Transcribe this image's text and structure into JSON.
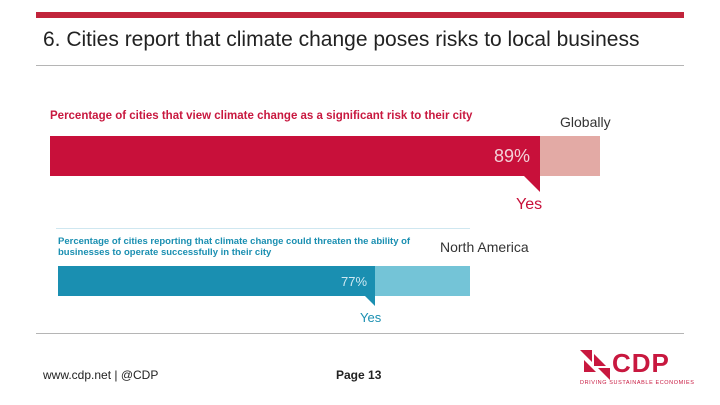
{
  "slide": {
    "title": "6. Cities report that climate change poses risks to local business"
  },
  "footer": {
    "url": "www.cdp.net | @CDP",
    "page": "Page 13"
  },
  "logo": {
    "text": "CDP",
    "tagline": "DRIVING SUSTAINABLE ECONOMIES"
  },
  "colors": {
    "brand_red": "#c1243b",
    "global_bar": "#c8103a",
    "global_bar_bg": "#e3aaa5",
    "na_bar": "#1a8fb1",
    "na_bar_bg": "#74c4d7"
  },
  "chart_data": [
    {
      "type": "bar",
      "title": "Percentage of cities that view climate change as a significant risk to their city",
      "region": "Globally",
      "categories": [
        "Yes"
      ],
      "values": [
        89
      ],
      "value_label": "89%",
      "xlim": [
        0,
        100
      ]
    },
    {
      "type": "bar",
      "title": "Percentage of cities reporting that climate change could threaten the ability of businesses to operate successfully in their city",
      "region": "North America",
      "categories": [
        "Yes"
      ],
      "values": [
        77
      ],
      "value_label": "77%",
      "xlim": [
        0,
        100
      ]
    }
  ]
}
